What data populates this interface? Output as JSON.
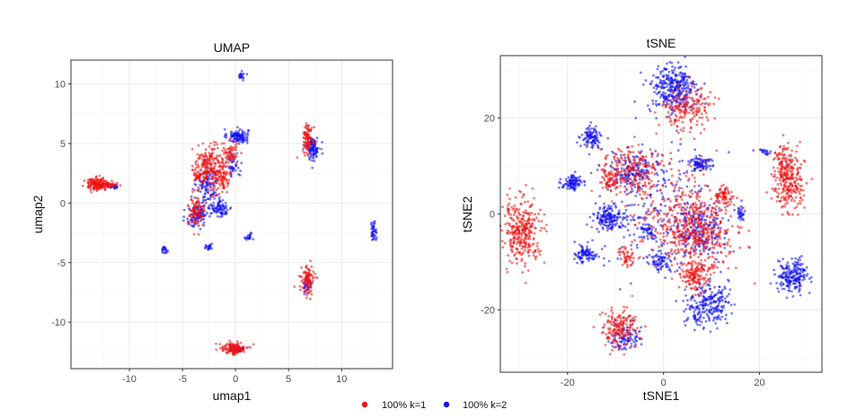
{
  "colors": {
    "k1": "#ee1111",
    "k2": "#1111ee",
    "grid": "#ebebeb",
    "panel_border": "#333333"
  },
  "legend": {
    "items": [
      {
        "label": "100% k=1",
        "color": "#ee1111"
      },
      {
        "label": "100% k=2",
        "color": "#1111ee"
      }
    ]
  },
  "chart_data": [
    {
      "type": "scatter",
      "title": "UMAP",
      "xlabel": "umap1",
      "ylabel": "umap2",
      "xlim": [
        -15.5,
        14.8
      ],
      "ylim": [
        -13.9,
        12.0
      ],
      "xticks": [
        -10,
        -5,
        0,
        5,
        10
      ],
      "yticks": [
        10,
        5,
        0,
        -5,
        -10
      ],
      "xtick_labels": [
        "-10",
        "-5",
        "0",
        "5",
        "10"
      ],
      "ytick_labels": [
        "10",
        "5",
        "0",
        "-5",
        "-10"
      ],
      "grid": true,
      "series": [
        {
          "name": "100% k=1",
          "clusters": [
            {
              "x": -13.0,
              "y": 1.6,
              "sx": 0.6,
              "sy": 0.25,
              "n": 160
            },
            {
              "x": -11.9,
              "y": 1.5,
              "sx": 0.4,
              "sy": 0.1,
              "n": 40
            },
            {
              "x": -2.5,
              "y": 3.0,
              "sx": 0.7,
              "sy": 0.9,
              "n": 220
            },
            {
              "x": -1.2,
              "y": 2.2,
              "sx": 0.4,
              "sy": 0.6,
              "n": 70
            },
            {
              "x": -0.5,
              "y": 4.2,
              "sx": 0.4,
              "sy": 0.5,
              "n": 60
            },
            {
              "x": -3.5,
              "y": 2.2,
              "sx": 0.2,
              "sy": 0.15,
              "n": 25
            },
            {
              "x": -3.7,
              "y": -0.8,
              "sx": 0.4,
              "sy": 0.6,
              "n": 90
            },
            {
              "x": 6.8,
              "y": 5.5,
              "sx": 0.25,
              "sy": 0.6,
              "n": 90
            },
            {
              "x": 6.8,
              "y": -6.5,
              "sx": 0.3,
              "sy": 0.6,
              "n": 100
            },
            {
              "x": -0.2,
              "y": -12.2,
              "sx": 0.6,
              "sy": 0.25,
              "n": 130
            }
          ]
        },
        {
          "name": "100% k=2",
          "clusters": [
            {
              "x": -11.5,
              "y": 1.4,
              "sx": 0.3,
              "sy": 0.1,
              "n": 20
            },
            {
              "x": 0.2,
              "y": 5.6,
              "sx": 0.5,
              "sy": 0.3,
              "n": 110
            },
            {
              "x": 0.6,
              "y": 10.7,
              "sx": 0.15,
              "sy": 0.15,
              "n": 20
            },
            {
              "x": -2.6,
              "y": 1.5,
              "sx": 0.5,
              "sy": 0.8,
              "n": 100
            },
            {
              "x": -0.2,
              "y": 3.2,
              "sx": 0.3,
              "sy": 0.5,
              "n": 40
            },
            {
              "x": -3.6,
              "y": -1.0,
              "sx": 0.5,
              "sy": 0.55,
              "n": 100
            },
            {
              "x": -1.5,
              "y": -0.4,
              "sx": 0.6,
              "sy": 0.4,
              "n": 90
            },
            {
              "x": 7.3,
              "y": 4.6,
              "sx": 0.3,
              "sy": 0.5,
              "n": 100
            },
            {
              "x": 13.0,
              "y": -2.3,
              "sx": 0.15,
              "sy": 0.4,
              "n": 40
            },
            {
              "x": -6.7,
              "y": -3.9,
              "sx": 0.15,
              "sy": 0.15,
              "n": 20
            },
            {
              "x": -2.5,
              "y": -3.8,
              "sx": 0.2,
              "sy": 0.15,
              "n": 20
            },
            {
              "x": 1.2,
              "y": -2.8,
              "sx": 0.2,
              "sy": 0.2,
              "n": 20
            },
            {
              "x": 6.8,
              "y": -6.9,
              "sx": 0.2,
              "sy": 0.3,
              "n": 30
            },
            {
              "x": 0.2,
              "y": -12.2,
              "sx": 0.3,
              "sy": 0.2,
              "n": 30
            }
          ]
        }
      ]
    },
    {
      "type": "scatter",
      "title": "tSNE",
      "xlabel": "tSNE1",
      "ylabel": "tSNE2",
      "xlim": [
        -34,
        33
      ],
      "ylim": [
        -33,
        33
      ],
      "xticks": [
        -20,
        0,
        20
      ],
      "yticks": [
        20,
        0,
        -20
      ],
      "xtick_labels": [
        "-20",
        "0",
        "20"
      ],
      "ytick_labels": [
        "20",
        "0",
        "-20"
      ],
      "grid": true,
      "series": [
        {
          "name": "100% k=1",
          "clusters": [
            {
              "x": -29.5,
              "y": -3.5,
              "sx": 2.0,
              "sy": 3.2,
              "n": 320
            },
            {
              "x": 26.0,
              "y": 7.0,
              "sx": 1.6,
              "sy": 3.0,
              "n": 260
            },
            {
              "x": 7.0,
              "y": -4.0,
              "sx": 3.8,
              "sy": 4.0,
              "n": 420
            },
            {
              "x": 5.0,
              "y": 22.0,
              "sx": 2.5,
              "sy": 2.2,
              "n": 180
            },
            {
              "x": -7.0,
              "y": 9.0,
              "sx": 3.0,
              "sy": 2.5,
              "n": 200
            },
            {
              "x": -11.0,
              "y": 7.0,
              "sx": 1.0,
              "sy": 1.2,
              "n": 50
            },
            {
              "x": 12.5,
              "y": 4.0,
              "sx": 1.0,
              "sy": 1.0,
              "n": 70
            },
            {
              "x": 6.5,
              "y": -13.0,
              "sx": 1.5,
              "sy": 1.8,
              "n": 140
            },
            {
              "x": -9.5,
              "y": -24.0,
              "sx": 2.0,
              "sy": 2.0,
              "n": 170
            },
            {
              "x": -7.5,
              "y": -9.0,
              "sx": 1.0,
              "sy": 1.0,
              "n": 50
            },
            {
              "x": 1.0,
              "y": 2.0,
              "sx": 6.0,
              "sy": 6.0,
              "n": 160
            },
            {
              "x": 24.5,
              "y": 11.0,
              "sx": 0.6,
              "sy": 1.5,
              "n": 40
            }
          ]
        },
        {
          "name": "100% k=2",
          "clusters": [
            {
              "x": 2.0,
              "y": 26.0,
              "sx": 2.5,
              "sy": 2.6,
              "n": 320
            },
            {
              "x": -15.0,
              "y": 16.0,
              "sx": 1.0,
              "sy": 1.1,
              "n": 100
            },
            {
              "x": -19.0,
              "y": 6.5,
              "sx": 1.1,
              "sy": 0.8,
              "n": 100
            },
            {
              "x": -16.0,
              "y": -8.5,
              "sx": 1.1,
              "sy": 0.8,
              "n": 90
            },
            {
              "x": -11.5,
              "y": -0.8,
              "sx": 1.5,
              "sy": 1.2,
              "n": 160
            },
            {
              "x": -6.5,
              "y": 9.0,
              "sx": 2.2,
              "sy": 2.0,
              "n": 140
            },
            {
              "x": 7.5,
              "y": 10.5,
              "sx": 1.1,
              "sy": 0.8,
              "n": 90
            },
            {
              "x": 7.5,
              "y": -3.0,
              "sx": 2.8,
              "sy": 3.0,
              "n": 200
            },
            {
              "x": 9.0,
              "y": -19.0,
              "sx": 2.3,
              "sy": 2.3,
              "n": 240
            },
            {
              "x": 27.0,
              "y": -13.0,
              "sx": 1.6,
              "sy": 1.6,
              "n": 200
            },
            {
              "x": -0.5,
              "y": -10.0,
              "sx": 1.3,
              "sy": 1.0,
              "n": 70
            },
            {
              "x": -3.0,
              "y": -3.5,
              "sx": 0.8,
              "sy": 0.7,
              "n": 40
            },
            {
              "x": 16.0,
              "y": 0.0,
              "sx": 0.5,
              "sy": 0.6,
              "n": 30
            },
            {
              "x": -8.0,
              "y": -25.5,
              "sx": 1.5,
              "sy": 1.5,
              "n": 90
            },
            {
              "x": 21.0,
              "y": 13.0,
              "sx": 0.8,
              "sy": 0.3,
              "n": 20
            },
            {
              "x": -1.0,
              "y": 2.0,
              "sx": 6.5,
              "sy": 6.5,
              "n": 220
            }
          ]
        }
      ]
    }
  ]
}
